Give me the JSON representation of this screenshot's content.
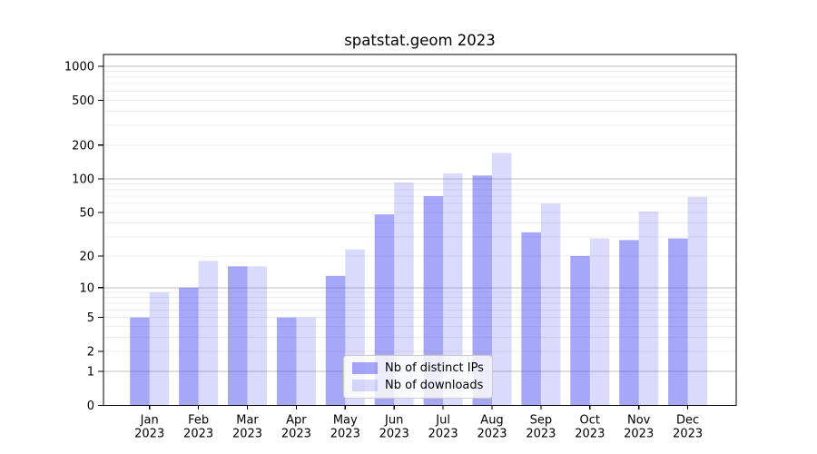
{
  "chart_data": {
    "type": "bar",
    "title": "spatstat.geom 2023",
    "categories": [
      "Jan 2023",
      "Feb 2023",
      "Mar 2023",
      "Apr 2023",
      "May 2023",
      "Jun 2023",
      "Jul 2023",
      "Aug 2023",
      "Sep 2023",
      "Oct 2023",
      "Nov 2023",
      "Dec 2023"
    ],
    "series": [
      {
        "name": "Nb of distinct IPs",
        "color": "rgba(80,80,240,0.50)",
        "values": [
          5,
          10,
          16,
          5,
          13,
          48,
          70,
          107,
          33,
          20,
          28,
          29
        ]
      },
      {
        "name": "Nb of downloads",
        "color": "rgba(80,80,240,0.21)",
        "values": [
          9,
          18,
          16,
          5,
          23,
          93,
          112,
          170,
          60,
          29,
          51,
          69
        ]
      }
    ],
    "yscale": "log1p",
    "yticks": [
      0,
      1,
      2,
      5,
      10,
      20,
      50,
      100,
      200,
      500,
      1000
    ],
    "ylim": [
      0,
      1270
    ],
    "xlabel": "",
    "ylabel": "",
    "grid": "on",
    "legend_position": "inside-lower-center",
    "colors": {
      "major_gridline": "#bdbdbd",
      "minor_gridline": "#ececec",
      "axis": "#000000",
      "tick_label": "#000000",
      "legend_border": "#cccccc",
      "legend_background": "rgba(255,255,255,0.8)"
    }
  }
}
